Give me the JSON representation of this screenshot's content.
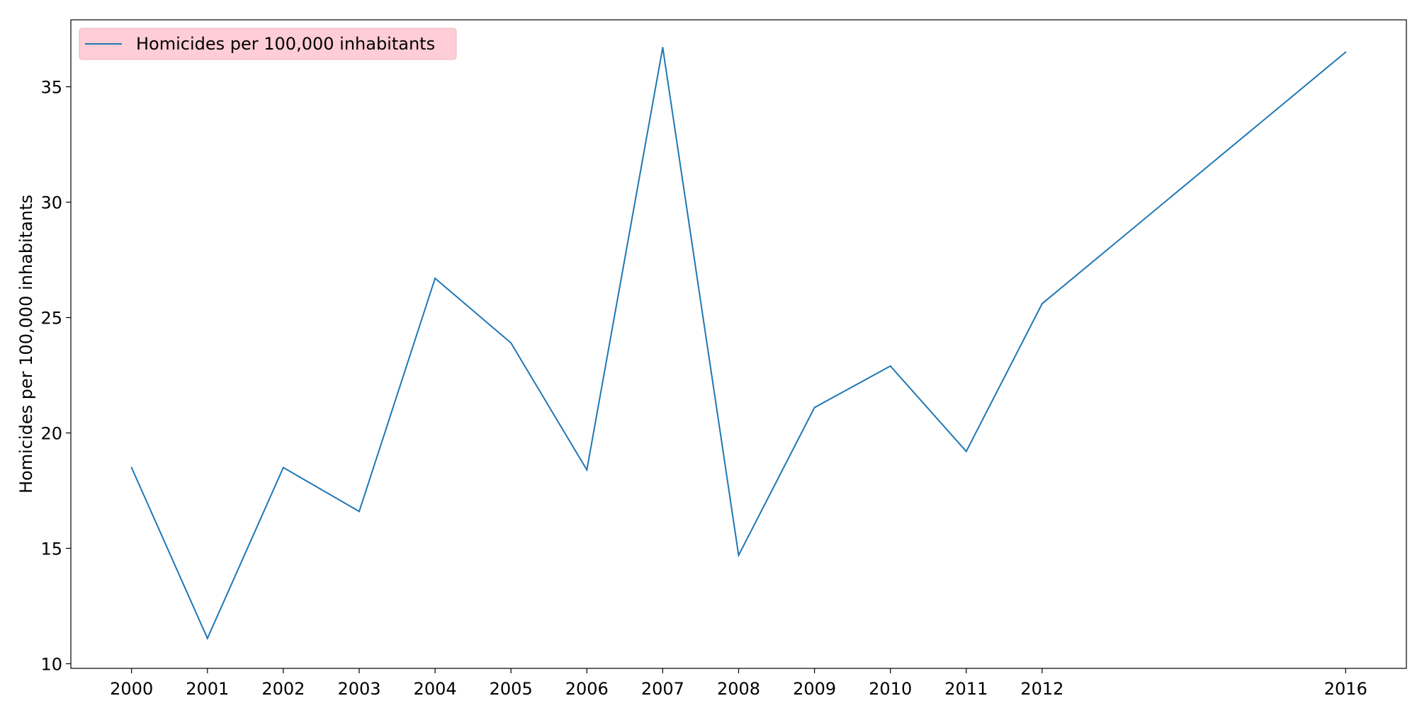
{
  "chart_data": {
    "type": "line",
    "title": "",
    "xlabel": "",
    "ylabel": "Homicides per 100,000 inhabitants",
    "x": [
      2000,
      2001,
      2002,
      2003,
      2004,
      2005,
      2006,
      2007,
      2008,
      2009,
      2010,
      2011,
      2012,
      2016
    ],
    "series": [
      {
        "name": "Homicides per 100,000 inhabitants",
        "values": [
          18.5,
          11.1,
          18.5,
          16.6,
          26.7,
          23.9,
          18.4,
          36.7,
          14.7,
          21.1,
          22.9,
          19.2,
          25.6,
          36.5
        ],
        "color": "#1f77b4"
      }
    ],
    "xticks": [
      "2000",
      "2001",
      "2002",
      "2003",
      "2004",
      "2005",
      "2006",
      "2007",
      "2008",
      "2009",
      "2010",
      "2011",
      "2012",
      "2016"
    ],
    "yticks": [
      "10",
      "15",
      "20",
      "25",
      "30",
      "35"
    ],
    "xlim": [
      1999.2,
      2016.8
    ],
    "ylim": [
      9.8,
      37.9
    ],
    "grid": false,
    "legend_position": "top-left",
    "legend_background": "#ffcdd6"
  }
}
